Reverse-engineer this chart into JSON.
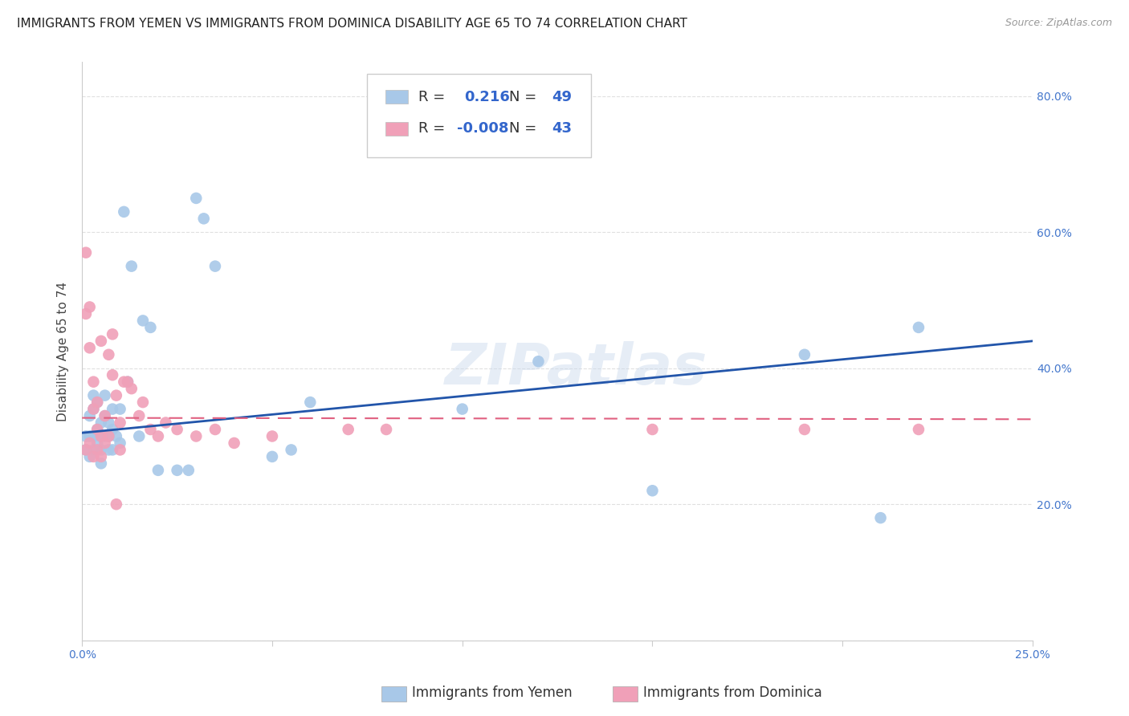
{
  "title": "IMMIGRANTS FROM YEMEN VS IMMIGRANTS FROM DOMINICA DISABILITY AGE 65 TO 74 CORRELATION CHART",
  "source": "Source: ZipAtlas.com",
  "ylabel": "Disability Age 65 to 74",
  "xlim": [
    0.0,
    0.25
  ],
  "ylim": [
    0.0,
    0.85
  ],
  "grid_color": "#e0e0e0",
  "background_color": "#ffffff",
  "watermark": "ZIPatlas",
  "yemen_color": "#a8c8e8",
  "dominica_color": "#f0a0b8",
  "yemen_line_color": "#2255aa",
  "dominica_line_color": "#e06080",
  "yemen_R": 0.216,
  "yemen_N": 49,
  "dominica_R": -0.008,
  "dominica_N": 43,
  "yemen_x": [
    0.001,
    0.001,
    0.002,
    0.002,
    0.002,
    0.003,
    0.003,
    0.003,
    0.003,
    0.004,
    0.004,
    0.004,
    0.005,
    0.005,
    0.005,
    0.005,
    0.006,
    0.006,
    0.006,
    0.007,
    0.007,
    0.007,
    0.008,
    0.008,
    0.008,
    0.009,
    0.01,
    0.01,
    0.011,
    0.012,
    0.013,
    0.015,
    0.016,
    0.018,
    0.02,
    0.025,
    0.028,
    0.03,
    0.032,
    0.035,
    0.05,
    0.055,
    0.06,
    0.1,
    0.12,
    0.15,
    0.19,
    0.21,
    0.22
  ],
  "yemen_y": [
    0.3,
    0.28,
    0.27,
    0.3,
    0.33,
    0.28,
    0.3,
    0.34,
    0.36,
    0.29,
    0.31,
    0.35,
    0.26,
    0.28,
    0.3,
    0.32,
    0.3,
    0.33,
    0.36,
    0.28,
    0.3,
    0.32,
    0.28,
    0.31,
    0.34,
    0.3,
    0.29,
    0.34,
    0.63,
    0.38,
    0.55,
    0.3,
    0.47,
    0.46,
    0.25,
    0.25,
    0.25,
    0.65,
    0.62,
    0.55,
    0.27,
    0.28,
    0.35,
    0.34,
    0.41,
    0.22,
    0.42,
    0.18,
    0.46
  ],
  "dominica_x": [
    0.001,
    0.001,
    0.001,
    0.002,
    0.002,
    0.002,
    0.003,
    0.003,
    0.003,
    0.004,
    0.004,
    0.004,
    0.005,
    0.005,
    0.005,
    0.006,
    0.006,
    0.007,
    0.007,
    0.008,
    0.008,
    0.009,
    0.009,
    0.01,
    0.01,
    0.011,
    0.012,
    0.013,
    0.015,
    0.016,
    0.018,
    0.02,
    0.022,
    0.025,
    0.03,
    0.035,
    0.04,
    0.05,
    0.07,
    0.08,
    0.15,
    0.19,
    0.22
  ],
  "dominica_y": [
    0.57,
    0.48,
    0.28,
    0.49,
    0.43,
    0.29,
    0.38,
    0.34,
    0.27,
    0.35,
    0.31,
    0.28,
    0.44,
    0.3,
    0.27,
    0.33,
    0.29,
    0.42,
    0.3,
    0.45,
    0.39,
    0.36,
    0.2,
    0.32,
    0.28,
    0.38,
    0.38,
    0.37,
    0.33,
    0.35,
    0.31,
    0.3,
    0.32,
    0.31,
    0.3,
    0.31,
    0.29,
    0.3,
    0.31,
    0.31,
    0.31,
    0.31,
    0.31
  ],
  "title_fontsize": 11,
  "axis_label_fontsize": 11,
  "tick_fontsize": 10,
  "source_fontsize": 9
}
